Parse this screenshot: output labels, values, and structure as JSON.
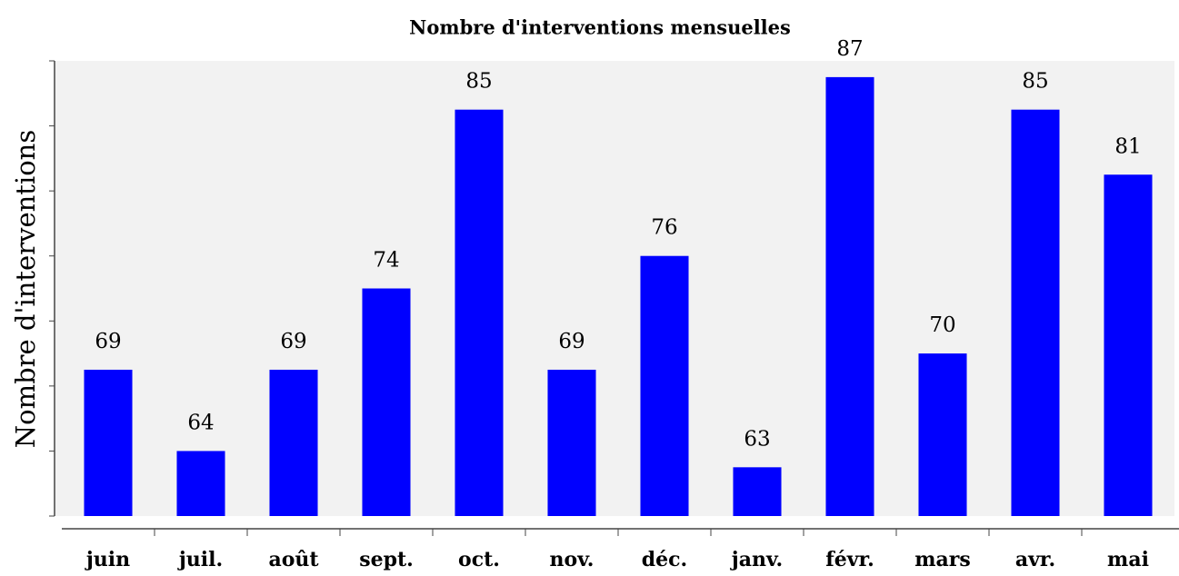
{
  "chart_data": {
    "type": "bar",
    "title": "Nombre d'interventions mensuelles",
    "y_label": "Nombre d'interventions",
    "categories": [
      "juin",
      "juil.",
      "août",
      "sept.",
      "oct.",
      "nov.",
      "déc.",
      "janv.",
      "févr.",
      "mars",
      "avr.",
      "mai"
    ],
    "values": [
      69,
      64,
      69,
      74,
      85,
      69,
      76,
      63,
      87,
      70,
      85,
      81
    ],
    "color": "#0000ff",
    "ylim": [
      60,
      88
    ],
    "yticks": [
      60,
      64,
      68,
      72,
      76,
      80,
      84,
      88
    ],
    "grid": false
  }
}
